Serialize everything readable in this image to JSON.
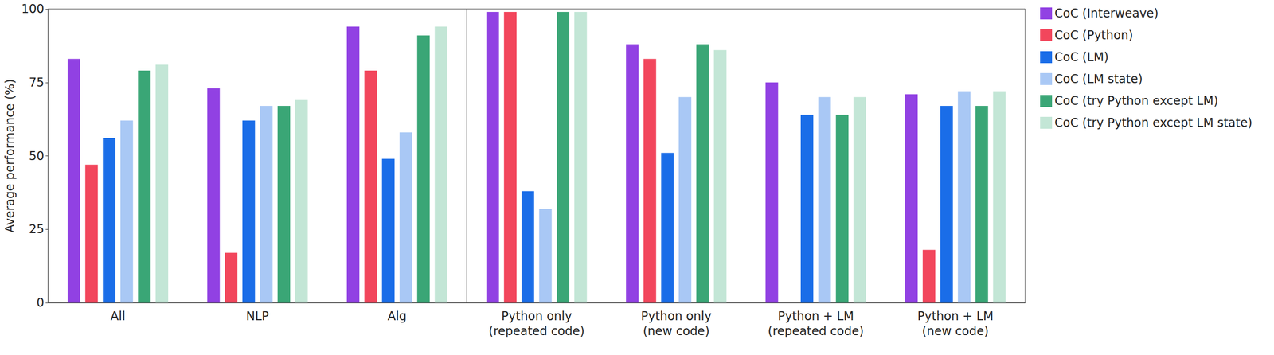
{
  "chart_data": {
    "type": "bar",
    "y_label": "Average performance (%)",
    "categories": [
      "All",
      "NLP",
      "Alg",
      "Python only (repeated code)",
      "Python only (new code)",
      "Python + LM (repeated code)",
      "Python + LM (new code)"
    ],
    "series": [
      {
        "name": "CoC (Interweave)",
        "color": "#9141e3",
        "values": [
          83,
          73,
          94,
          99,
          88,
          75,
          71
        ]
      },
      {
        "name": "CoC (Python)",
        "color": "#f2465c",
        "values": [
          47,
          17,
          79,
          99,
          83,
          0,
          18
        ]
      },
      {
        "name": "CoC (LM)",
        "color": "#1a6de8",
        "values": [
          56,
          62,
          49,
          38,
          51,
          64,
          67
        ]
      },
      {
        "name": "CoC (LM state)",
        "color": "#a9c8f5",
        "values": [
          62,
          67,
          58,
          32,
          70,
          70,
          72
        ]
      },
      {
        "name": "CoC (try Python except LM)",
        "color": "#3aa676",
        "values": [
          79,
          67,
          91,
          99,
          88,
          64,
          67
        ]
      },
      {
        "name": "CoC (try Python except LM state)",
        "color": "#c3e6d6",
        "values": [
          81,
          69,
          94,
          99,
          86,
          70,
          72
        ]
      }
    ],
    "ylim": [
      0,
      100
    ],
    "yticks": [
      0,
      25,
      50,
      75,
      100
    ],
    "grid": false,
    "legend": "right"
  }
}
